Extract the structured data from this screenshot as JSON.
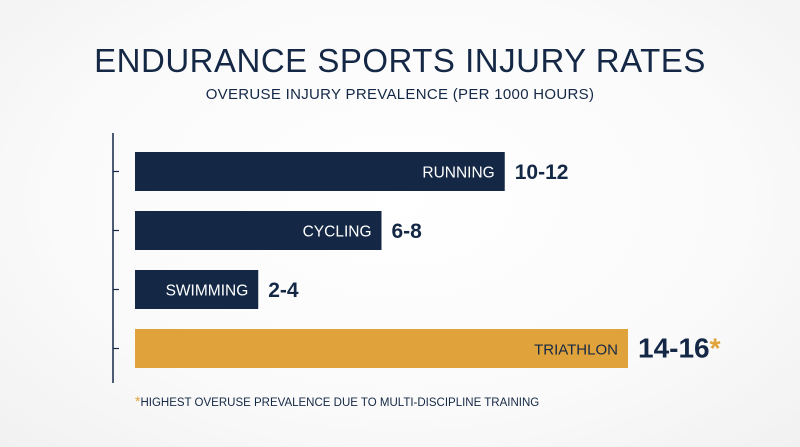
{
  "title": "ENDURANCE SPORTS INJURY RATES",
  "subtitle": "OVERUSE INJURY PREVALENCE (PER 1000 HOURS)",
  "footnote": {
    "marker": "*",
    "text": "HIGHEST OVERUSE PREVALENCE DUE TO MULTI-DISCIPLINE TRAINING"
  },
  "colors": {
    "navy": "#142846",
    "accent": "#e0a23a",
    "text": "#142846",
    "bar_label": "#ffffff"
  },
  "chart_data": {
    "type": "bar",
    "orientation": "horizontal",
    "title": "ENDURANCE SPORTS INJURY RATES",
    "subtitle": "OVERUSE INJURY PREVALENCE (PER 1000 HOURS)",
    "categories": [
      "RUNNING",
      "CYCLING",
      "SWIMMING",
      "TRIATHLON"
    ],
    "ranges": [
      [
        10,
        12
      ],
      [
        6,
        8
      ],
      [
        2,
        4
      ],
      [
        14,
        16
      ]
    ],
    "value_labels": [
      "10-12",
      "6-8",
      "2-4",
      "14-16"
    ],
    "highlight": [
      "TRIATHLON"
    ],
    "highlight_marker": "*",
    "xlim": [
      0,
      16
    ],
    "xlabel": "",
    "ylabel": "",
    "grid": false,
    "legend": "none"
  }
}
